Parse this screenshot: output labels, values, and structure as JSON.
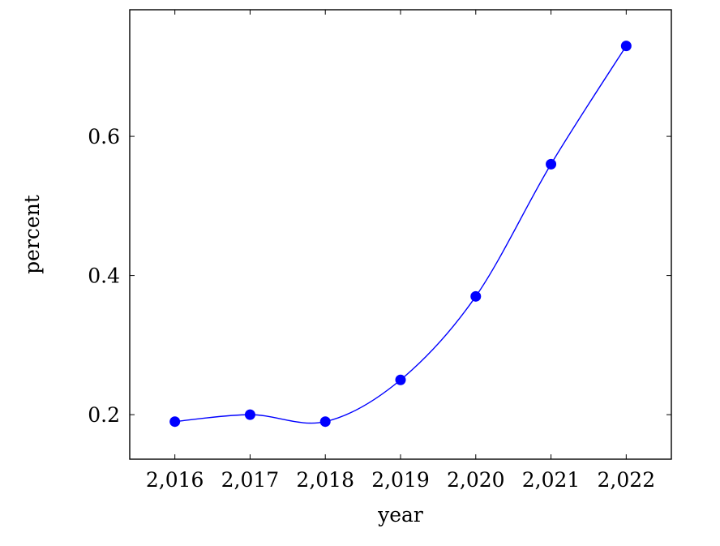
{
  "chart_data": {
    "type": "line",
    "title": "",
    "xlabel": "year",
    "ylabel": "percent",
    "x": [
      2016,
      2017,
      2018,
      2019,
      2020,
      2021,
      2022
    ],
    "x_tick_labels": [
      "2,016",
      "2,017",
      "2,018",
      "2,019",
      "2,020",
      "2,021",
      "2,022"
    ],
    "y_ticks": [
      0.2,
      0.4,
      0.6
    ],
    "y_tick_labels": [
      "0.2",
      "0.4",
      "0.6"
    ],
    "series": [
      {
        "values": [
          0.19,
          0.2,
          0.19,
          0.25,
          0.37,
          0.56,
          0.73
        ],
        "color": "#0000ff",
        "marker": "circle",
        "smooth": true
      }
    ],
    "xlim": [
      2015.4,
      2022.6
    ],
    "ylim": [
      0.136,
      0.782
    ],
    "grid": false,
    "legend": "none"
  }
}
